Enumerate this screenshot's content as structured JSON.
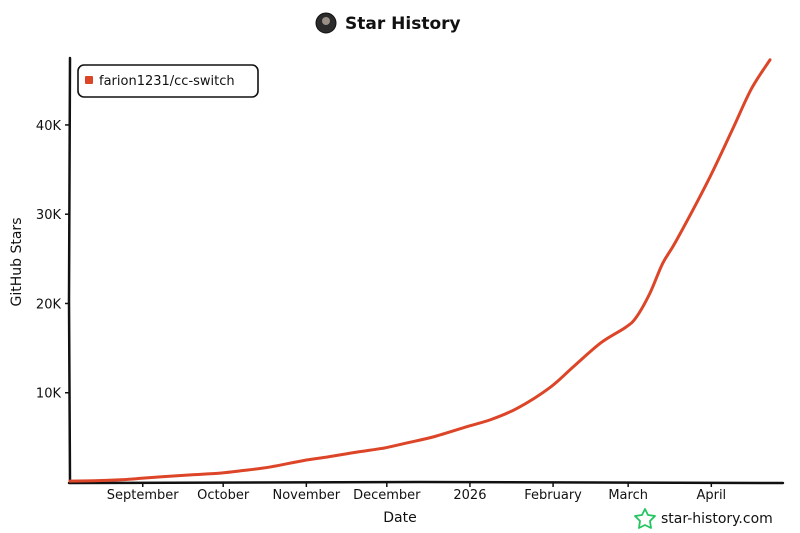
{
  "chart_data": {
    "type": "line",
    "title": "Star History",
    "xlabel": "Date",
    "ylabel": "GitHub Stars",
    "x_ticks": [
      "September",
      "October",
      "November",
      "December",
      "2026",
      "February",
      "March",
      "April"
    ],
    "y_ticks": [
      "10K",
      "20K",
      "30K",
      "40K"
    ],
    "ylim": [
      0,
      47500
    ],
    "xlim": [
      "2025-08-06",
      "2026-04-24"
    ],
    "grid": false,
    "legend_position": "top-left",
    "series": [
      {
        "name": "farion1231/cc-switch",
        "color": "#dd4528",
        "points": [
          {
            "x": "2025-08-06",
            "y": 100
          },
          {
            "x": "2025-08-15",
            "y": 150
          },
          {
            "x": "2025-08-25",
            "y": 250
          },
          {
            "x": "2025-09-01",
            "y": 400
          },
          {
            "x": "2025-09-10",
            "y": 600
          },
          {
            "x": "2025-09-20",
            "y": 800
          },
          {
            "x": "2025-10-01",
            "y": 1000
          },
          {
            "x": "2025-10-10",
            "y": 1300
          },
          {
            "x": "2025-10-20",
            "y": 1700
          },
          {
            "x": "2025-11-01",
            "y": 2400
          },
          {
            "x": "2025-11-10",
            "y": 2800
          },
          {
            "x": "2025-11-20",
            "y": 3300
          },
          {
            "x": "2025-12-01",
            "y": 3800
          },
          {
            "x": "2025-12-10",
            "y": 4400
          },
          {
            "x": "2025-12-20",
            "y": 5100
          },
          {
            "x": "2026-01-01",
            "y": 6200
          },
          {
            "x": "2026-01-10",
            "y": 7000
          },
          {
            "x": "2026-01-20",
            "y": 8300
          },
          {
            "x": "2026-02-01",
            "y": 10600
          },
          {
            "x": "2026-02-10",
            "y": 13000
          },
          {
            "x": "2026-02-20",
            "y": 15600
          },
          {
            "x": "2026-03-01",
            "y": 17300
          },
          {
            "x": "2026-03-05",
            "y": 18400
          },
          {
            "x": "2026-03-10",
            "y": 21000
          },
          {
            "x": "2026-03-15",
            "y": 24500
          },
          {
            "x": "2026-03-20",
            "y": 27000
          },
          {
            "x": "2026-04-01",
            "y": 33800
          },
          {
            "x": "2026-04-10",
            "y": 39500
          },
          {
            "x": "2026-04-17",
            "y": 44000
          },
          {
            "x": "2026-04-24",
            "y": 47300
          }
        ]
      }
    ]
  },
  "watermark": {
    "text": "star-history.com",
    "icon": "star-icon",
    "color": "#22c55e"
  },
  "title_avatar": "avatar"
}
